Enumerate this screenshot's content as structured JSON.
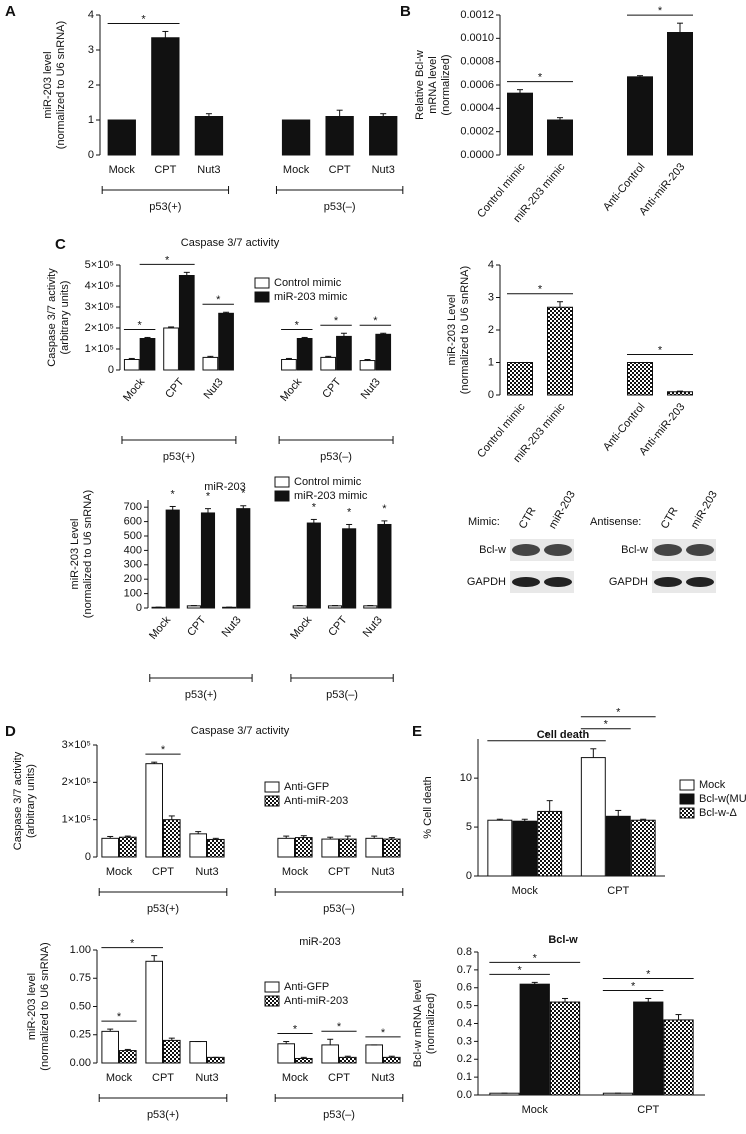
{
  "panel_labels": [
    "A",
    "B",
    "C",
    "D",
    "E"
  ],
  "blots": [
    {
      "label": "Mimic:",
      "lanes": [
        "CTR",
        "miR-203"
      ],
      "rows": [
        "Bcl-w",
        "GAPDH"
      ]
    },
    {
      "label": "Antisense:",
      "lanes": [
        "CTR",
        "miR-203"
      ],
      "rows": [
        "Bcl-w",
        "GAPDH"
      ]
    }
  ],
  "chart_data": [
    {
      "type": "bar",
      "ylabel": [
        "miR-203 level",
        "(normalized to U6 snRNA)"
      ],
      "categories": [
        "Mock",
        "CPT",
        "Nut3",
        "Mock",
        "CPT",
        "Nut3"
      ],
      "values": [
        1,
        3.35,
        1.1,
        1,
        1.1,
        1.1
      ],
      "errors": [
        0,
        0.18,
        0.08,
        0,
        0.18,
        0.08
      ],
      "color": "#111111",
      "ylim": [
        0,
        4
      ],
      "yticks": [
        0,
        1,
        2,
        3,
        4
      ],
      "groups": [
        {
          "label": "p53(+)",
          "span": [
            0,
            2
          ]
        },
        {
          "label": "p53(–)",
          "span": [
            3,
            5
          ]
        }
      ],
      "significance": [
        {
          "label": "*",
          "from": [
            0,
            0
          ],
          "to": [
            1,
            0
          ]
        }
      ]
    },
    {
      "type": "bar",
      "ylabel": [
        "Relative Bcl-w",
        "mRNA level",
        "(normalized)"
      ],
      "categories": [
        "Control mimic",
        "miR-203 mimic",
        "Anti-Control",
        "Anti-miR-203"
      ],
      "values": [
        0.00053,
        0.0003,
        0.00067,
        0.00105
      ],
      "errors": [
        3e-05,
        2e-05,
        1e-05,
        8e-05
      ],
      "color": "#111111",
      "ylim": [
        0,
        0.0012
      ],
      "yticks": [
        {
          "value": 0,
          "label": "0.0000"
        },
        0.0002,
        0.0004,
        0.0006,
        0.0008,
        {
          "value": 0.001,
          "label": "0.0010"
        },
        0.0012
      ],
      "significance": [
        {
          "label": "*",
          "from": [
            0,
            0
          ],
          "to": [
            1,
            0
          ]
        },
        {
          "label": "*",
          "from": [
            2,
            0
          ],
          "to": [
            3,
            0
          ]
        }
      ]
    },
    {
      "type": "bar",
      "title": "Caspase 3/7 activity",
      "ylabel": [
        "Caspase 3/7 activity",
        "(arbitrary units)"
      ],
      "categories": [
        "Mock",
        "CPT",
        "Nut3",
        "Mock",
        "CPT",
        "Nut3"
      ],
      "series": [
        {
          "name": "Control mimic",
          "color": "#ffffff",
          "values": [
            50000,
            200000,
            60000,
            50000,
            60000,
            45000
          ],
          "errors": [
            5000,
            5000,
            5000,
            5000,
            5000,
            5000
          ]
        },
        {
          "name": "miR-203 mimic",
          "color": "#111111",
          "values": [
            150000,
            450000,
            270000,
            150000,
            160000,
            170000
          ],
          "errors": [
            5000,
            15000,
            5000,
            5000,
            15000,
            5000
          ]
        }
      ],
      "ylim": [
        0,
        500000
      ],
      "yticks": [
        0,
        {
          "value": 100000,
          "label": "1×10⁵"
        },
        {
          "value": 200000,
          "label": "2×10⁵"
        },
        {
          "value": 300000,
          "label": "3×10⁵"
        },
        {
          "value": 400000,
          "label": "4×10⁵"
        },
        {
          "value": 500000,
          "label": "5×10⁵"
        }
      ],
      "groups": [
        {
          "label": "p53(+)",
          "span": [
            0,
            2
          ]
        },
        {
          "label": "p53(–)",
          "span": [
            3,
            5
          ]
        }
      ],
      "significance": [
        {
          "label": "*",
          "from": [
            0,
            0
          ],
          "to": [
            0,
            1
          ]
        },
        {
          "label": "*",
          "from": [
            0,
            1
          ],
          "to": [
            1,
            1
          ]
        },
        {
          "label": "*",
          "from": [
            2,
            0
          ],
          "to": [
            2,
            1
          ]
        },
        {
          "label": "*",
          "from": [
            3,
            0
          ],
          "to": [
            3,
            1
          ]
        },
        {
          "label": "*",
          "from": [
            4,
            0
          ],
          "to": [
            4,
            1
          ]
        },
        {
          "label": "*",
          "from": [
            5,
            0
          ],
          "to": [
            5,
            1
          ]
        }
      ]
    },
    {
      "type": "bar",
      "ylabel": [
        "miR-203 Level",
        "(normalized to U6 snRNA)"
      ],
      "categories": [
        "Control mimic",
        "miR-203 mimic",
        "Anti-Control",
        "Anti-miR-203"
      ],
      "values": [
        1,
        2.7,
        1,
        0.1
      ],
      "errors": [
        0,
        0.17,
        0,
        0.02
      ],
      "color": "#ffffff",
      "pattern": "checker",
      "ylim": [
        0,
        4
      ],
      "yticks": [
        0,
        1,
        2,
        3,
        4
      ],
      "significance": [
        {
          "label": "*",
          "from": [
            0,
            0
          ],
          "to": [
            1,
            0
          ]
        },
        {
          "label": "*",
          "from": [
            2,
            0
          ],
          "to": [
            3,
            0
          ]
        }
      ]
    },
    {
      "type": "bar",
      "title": "miR-203",
      "ylabel": [
        "miR-203 Level",
        "(normalized to U6 snRNA)"
      ],
      "categories": [
        "Mock",
        "CPT",
        "Nut3",
        "Mock",
        "CPT",
        "Nut3"
      ],
      "series": [
        {
          "name": "Control mimic",
          "color": "#ffffff",
          "values": [
            5,
            15,
            5,
            15,
            15,
            15
          ],
          "errors": [
            1,
            2,
            1,
            2,
            2,
            2
          ]
        },
        {
          "name": "miR-203 mimic",
          "color": "#111111",
          "values": [
            680,
            660,
            690,
            590,
            550,
            580
          ],
          "errors": [
            25,
            30,
            20,
            25,
            30,
            25
          ]
        }
      ],
      "ylim": [
        0,
        750
      ],
      "yticks": [
        0,
        100,
        200,
        300,
        400,
        500,
        600,
        700
      ],
      "groups": [
        {
          "label": "p53(+)",
          "span": [
            0,
            2
          ]
        },
        {
          "label": "p53(–)",
          "span": [
            3,
            5
          ]
        }
      ],
      "significance": [
        {
          "label": "*",
          "from": [
            0,
            1
          ],
          "to": [
            0,
            1
          ]
        },
        {
          "label": "*",
          "from": [
            1,
            1
          ],
          "to": [
            1,
            1
          ]
        },
        {
          "label": "*",
          "from": [
            2,
            1
          ],
          "to": [
            2,
            1
          ]
        },
        {
          "label": "*",
          "from": [
            3,
            1
          ],
          "to": [
            3,
            1
          ]
        },
        {
          "label": "*",
          "from": [
            4,
            1
          ],
          "to": [
            4,
            1
          ]
        },
        {
          "label": "*",
          "from": [
            5,
            1
          ],
          "to": [
            5,
            1
          ]
        }
      ]
    },
    {
      "type": "bar",
      "title": "Caspase 3/7 activity",
      "ylabel": [
        "Caspase 3/7 activity",
        "(arbitrary units)"
      ],
      "categories": [
        "Mock",
        "CPT",
        "Nut3",
        "Mock",
        "CPT",
        "Nut3"
      ],
      "series": [
        {
          "name": "Anti-GFP",
          "color": "#ffffff",
          "values": [
            50000,
            250000,
            62000,
            50000,
            48000,
            50000
          ],
          "errors": [
            5000,
            4000,
            6000,
            6000,
            5000,
            6000
          ]
        },
        {
          "name": "Anti-miR-203",
          "color": "#ffffff",
          "pattern": "checker",
          "values": [
            53000,
            100000,
            47000,
            52000,
            48000,
            48000
          ],
          "errors": [
            3000,
            10000,
            3000,
            5000,
            8000,
            4000
          ]
        }
      ],
      "ylim": [
        0,
        300000
      ],
      "yticks": [
        0,
        {
          "value": 100000,
          "label": "1×10⁵"
        },
        {
          "value": 200000,
          "label": "2×10⁵"
        },
        {
          "value": 300000,
          "label": "3×10⁵"
        }
      ],
      "groups": [
        {
          "label": "p53(+)",
          "span": [
            0,
            2
          ]
        },
        {
          "label": "p53(–)",
          "span": [
            3,
            5
          ]
        }
      ],
      "significance": [
        {
          "label": "*",
          "from": [
            1,
            0
          ],
          "to": [
            1,
            1
          ]
        }
      ]
    },
    {
      "type": "bar",
      "title": "miR-203",
      "ylabel": [
        "miR-203 level",
        "(normalized to U6 snRNA)"
      ],
      "categories": [
        "Mock",
        "CPT",
        "Nut3",
        "Mock",
        "CPT",
        "Nut3"
      ],
      "series": [
        {
          "name": "Anti-GFP",
          "color": "#ffffff",
          "values": [
            0.28,
            0.9,
            0.19,
            0.17,
            0.16,
            0.16
          ],
          "errors": [
            0.02,
            0.05,
            0,
            0.02,
            0.05,
            0
          ]
        },
        {
          "name": "Anti-miR-203",
          "color": "#ffffff",
          "pattern": "checker",
          "values": [
            0.11,
            0.2,
            0.05,
            0.04,
            0.05,
            0.05
          ],
          "errors": [
            0.01,
            0.02,
            0,
            0.01,
            0.01,
            0.01
          ]
        }
      ],
      "ylim": [
        0,
        1.0
      ],
      "yticks": [
        {
          "value": 0,
          "label": "0.00"
        },
        0.25,
        {
          "value": 0.5,
          "label": "0.50"
        },
        0.75,
        {
          "value": 1,
          "label": "1.00"
        }
      ],
      "groups": [
        {
          "label": "p53(+)",
          "span": [
            0,
            2
          ]
        },
        {
          "label": "p53(–)",
          "span": [
            3,
            5
          ]
        }
      ],
      "significance": [
        {
          "label": "*",
          "from": [
            0,
            0
          ],
          "to": [
            0,
            1
          ]
        },
        {
          "label": "*",
          "from": [
            0,
            0
          ],
          "to": [
            1,
            0
          ]
        },
        {
          "label": "*",
          "from": [
            3,
            0
          ],
          "to": [
            3,
            1
          ]
        },
        {
          "label": "*",
          "from": [
            4,
            0
          ],
          "to": [
            4,
            1
          ]
        },
        {
          "label": "*",
          "from": [
            5,
            0
          ],
          "to": [
            5,
            1
          ]
        }
      ]
    },
    {
      "type": "bar",
      "title": "Cell death",
      "ylabel": [
        "% Cell death"
      ],
      "categories": [
        "Mock",
        "CPT"
      ],
      "series": [
        {
          "name": "Mock",
          "color": "#ffffff",
          "values": [
            5.7,
            12.1
          ],
          "errors": [
            0.1,
            0.9
          ]
        },
        {
          "name": "Bcl-w(MUT)",
          "color": "#111111",
          "values": [
            5.6,
            6.1
          ],
          "errors": [
            0.2,
            0.6
          ]
        },
        {
          "name": "Bcl-w-Δ",
          "color": "#ffffff",
          "pattern": "checker",
          "values": [
            6.6,
            5.7
          ],
          "errors": [
            1.1,
            0.1
          ]
        }
      ],
      "ylim": [
        0,
        14
      ],
      "yticks": [
        0,
        5,
        10
      ],
      "significance": [
        {
          "label": "*",
          "from": [
            0,
            0
          ],
          "to": [
            1,
            0
          ]
        },
        {
          "label": "*",
          "from": [
            1,
            0
          ],
          "to": [
            1,
            1
          ]
        },
        {
          "label": "*",
          "from": [
            1,
            0
          ],
          "to": [
            1,
            2
          ]
        }
      ]
    },
    {
      "type": "bar",
      "title": "Bcl-w",
      "ylabel": [
        "Bcl-w mRNA level",
        "(normalized)"
      ],
      "categories": [
        "Mock",
        "CPT"
      ],
      "series": [
        {
          "name": "Mock",
          "color": "#ffffff",
          "values": [
            0.01,
            0.01
          ],
          "errors": [
            0,
            0
          ]
        },
        {
          "name": "Bcl-w(MUT)",
          "color": "#111111",
          "values": [
            0.62,
            0.52
          ],
          "errors": [
            0.01,
            0.02
          ]
        },
        {
          "name": "Bcl-w-Δ",
          "color": "#ffffff",
          "pattern": "checker",
          "values": [
            0.52,
            0.42
          ],
          "errors": [
            0.02,
            0.03
          ]
        }
      ],
      "ylim": [
        0,
        0.8
      ],
      "yticks": [
        {
          "value": 0,
          "label": "0.0"
        },
        0.1,
        0.2,
        0.3,
        0.4,
        0.5,
        0.6,
        0.7,
        0.8
      ],
      "significance": [
        {
          "label": "*",
          "from": [
            0,
            0
          ],
          "to": [
            0,
            1
          ]
        },
        {
          "label": "*",
          "from": [
            0,
            0
          ],
          "to": [
            0,
            2
          ]
        },
        {
          "label": "*",
          "from": [
            1,
            0
          ],
          "to": [
            1,
            1
          ]
        },
        {
          "label": "*",
          "from": [
            1,
            0
          ],
          "to": [
            1,
            2
          ]
        }
      ]
    }
  ]
}
